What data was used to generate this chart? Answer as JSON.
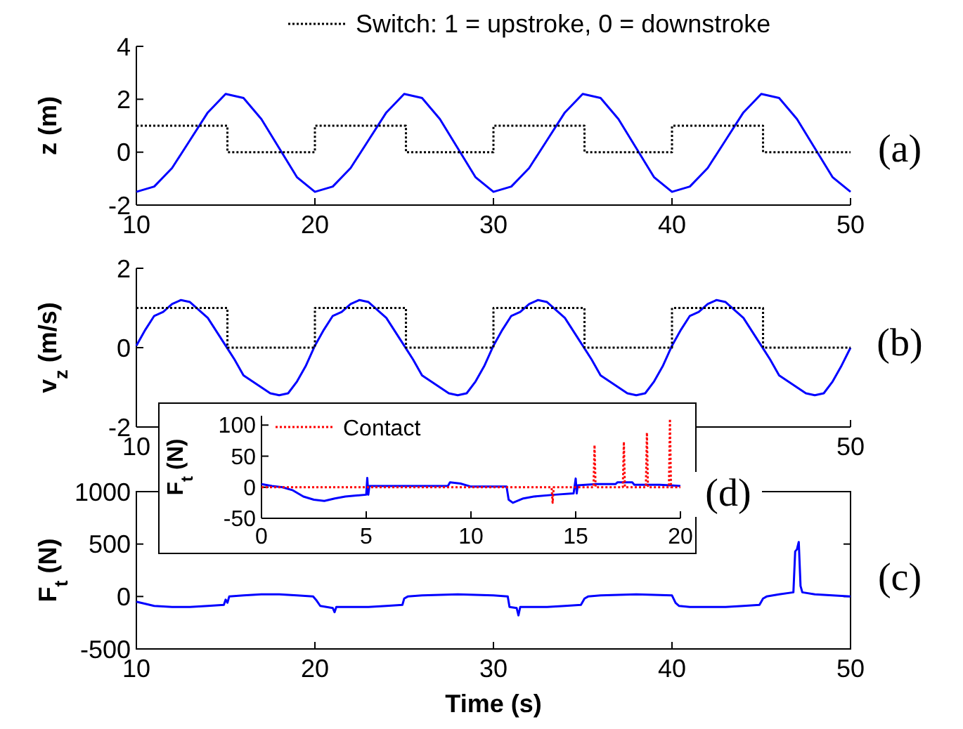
{
  "chart_data": [
    {
      "type": "line",
      "ylabel": "z (m)",
      "xlim": [
        10,
        50
      ],
      "ylim": [
        -2,
        4
      ],
      "xticks": [
        10,
        20,
        30,
        40,
        50
      ],
      "yticks": [
        -2,
        0,
        2,
        4
      ],
      "legend": "top",
      "annotations": [
        "(a)"
      ],
      "series": [
        {
          "color": "#0000ff",
          "x": [
            10,
            11,
            12,
            13,
            14,
            15,
            16,
            17,
            18,
            19,
            20,
            21,
            22,
            23,
            24,
            25,
            26,
            27,
            28,
            29,
            30,
            31,
            32,
            33,
            34,
            35,
            36,
            37,
            38,
            39,
            40,
            41,
            42,
            43,
            44,
            45,
            46,
            47,
            48,
            49,
            50
          ],
          "values": [
            -1.5,
            -1.3,
            -0.6,
            0.45,
            1.5,
            2.2,
            2.05,
            1.25,
            0.15,
            -0.95,
            -1.5,
            -1.3,
            -0.6,
            0.45,
            1.5,
            2.2,
            2.05,
            1.25,
            0.15,
            -0.95,
            -1.5,
            -1.3,
            -0.6,
            0.45,
            1.5,
            2.2,
            2.05,
            1.25,
            0.15,
            -0.95,
            -1.5,
            -1.3,
            -0.6,
            0.45,
            1.5,
            2.2,
            2.05,
            1.25,
            0.15,
            -0.95,
            -1.5
          ]
        },
        {
          "type": "step",
          "name": "Switch: 1 = upstroke, 0 = downstroke",
          "color": "#000000",
          "line_style": "dotted",
          "x": [
            10,
            15.1,
            20,
            25.1,
            30,
            35.1,
            40,
            45.1,
            50
          ],
          "values": [
            1,
            0,
            1,
            0,
            1,
            0,
            1,
            0,
            0
          ]
        }
      ]
    },
    {
      "type": "line",
      "ylabel": "v$_{z}$ (m/s)",
      "xlim": [
        10,
        50
      ],
      "ylim": [
        -2,
        2
      ],
      "xticks": [
        10,
        50
      ],
      "yticks": [
        -2,
        0,
        2
      ],
      "annotations": [
        "(b)"
      ],
      "series": [
        {
          "color": "#0000ff",
          "x": [
            10,
            10.5,
            11,
            11.5,
            12,
            12.5,
            13,
            14,
            15,
            15.5,
            16,
            16.5,
            17,
            17.5,
            18,
            18.5,
            19,
            19.5,
            20,
            20.5,
            21,
            21.5,
            22,
            22.5,
            23,
            24,
            25,
            25.5,
            26,
            26.5,
            27,
            27.5,
            28,
            28.5,
            29,
            29.5,
            30,
            30.5,
            31,
            31.5,
            32,
            32.5,
            33,
            34,
            35,
            35.5,
            36,
            36.5,
            37,
            37.5,
            38,
            38.5,
            39,
            39.5,
            40,
            40.5,
            41,
            41.5,
            42,
            42.5,
            43,
            44,
            45,
            45.5,
            46,
            46.5,
            47,
            47.5,
            48,
            48.5,
            49,
            49.5,
            50
          ],
          "values": [
            0.05,
            0.45,
            0.8,
            0.9,
            1.1,
            1.2,
            1.15,
            0.75,
            0.05,
            -0.3,
            -0.7,
            -0.85,
            -1.0,
            -1.15,
            -1.2,
            -1.15,
            -0.85,
            -0.45,
            0.05,
            0.45,
            0.8,
            0.9,
            1.1,
            1.2,
            1.15,
            0.75,
            0.05,
            -0.3,
            -0.7,
            -0.85,
            -1.0,
            -1.15,
            -1.2,
            -1.15,
            -0.85,
            -0.45,
            0.05,
            0.45,
            0.8,
            0.9,
            1.1,
            1.2,
            1.15,
            0.75,
            0.05,
            -0.3,
            -0.7,
            -0.85,
            -1.0,
            -1.15,
            -1.2,
            -1.15,
            -0.85,
            -0.45,
            0.05,
            0.45,
            0.8,
            0.9,
            1.1,
            1.2,
            1.15,
            0.75,
            0.05,
            -0.3,
            -0.7,
            -0.85,
            -1.0,
            -1.15,
            -1.2,
            -1.15,
            -0.85,
            -0.45,
            0.0
          ]
        },
        {
          "type": "step",
          "color": "#000000",
          "line_style": "dotted",
          "x": [
            10,
            15.1,
            20,
            25.1,
            30,
            35.1,
            40,
            45.1,
            50
          ],
          "values": [
            1,
            0,
            1,
            0,
            1,
            0,
            1,
            0,
            0
          ]
        }
      ]
    },
    {
      "type": "line",
      "ylabel": "F$_{t}$ (N)",
      "xlabel": "Time (s)",
      "xlim": [
        10,
        50
      ],
      "ylim": [
        -500,
        1000
      ],
      "xticks": [
        10,
        20,
        30,
        40,
        50
      ],
      "yticks": [
        -500,
        0,
        500,
        1000
      ],
      "annotations": [
        "(c)"
      ],
      "series": [
        {
          "color": "#0000ff",
          "x": [
            10,
            10.5,
            11,
            12,
            13,
            14,
            14.9,
            15,
            15.1,
            15.2,
            16,
            17,
            18,
            19,
            19.9,
            20.1,
            20.3,
            21,
            21.1,
            21.2,
            22,
            23,
            24,
            24.9,
            25,
            25.2,
            26,
            28,
            30,
            30.8,
            30.9,
            31.3,
            31.4,
            31.5,
            32,
            33,
            34,
            34.9,
            35.1,
            35.3,
            36,
            38,
            40,
            40.2,
            40.4,
            41,
            43,
            44,
            44.9,
            45.1,
            45.3,
            46,
            46.8,
            46.9,
            47,
            47.1,
            47.2,
            47.3,
            48,
            50
          ],
          "values": [
            -50,
            -70,
            -90,
            -100,
            -100,
            -90,
            -80,
            -30,
            -60,
            0,
            10,
            20,
            20,
            10,
            0,
            -40,
            -90,
            -110,
            -150,
            -100,
            -100,
            -100,
            -90,
            -80,
            -20,
            0,
            10,
            20,
            10,
            0,
            -100,
            -110,
            -180,
            -100,
            -100,
            -100,
            -90,
            -80,
            -20,
            0,
            10,
            20,
            10,
            -60,
            -90,
            -100,
            -100,
            -90,
            -80,
            -20,
            0,
            20,
            40,
            430,
            450,
            520,
            100,
            40,
            20,
            0
          ]
        }
      ]
    },
    {
      "type": "line",
      "ylabel": "F$_{t}$ (N)",
      "xlim": [
        0,
        20
      ],
      "ylim": [
        -50,
        115
      ],
      "xticks": [
        0,
        5,
        10,
        15,
        20
      ],
      "yticks": [
        -50,
        0,
        50,
        100
      ],
      "legend": "top left",
      "annotations": [
        "(d)"
      ],
      "series": [
        {
          "color": "#0000ff",
          "x": [
            0,
            0.5,
            1,
            1.5,
            2,
            2.5,
            3,
            3.5,
            4,
            5,
            5.05,
            5.1,
            5.15,
            7,
            8.9,
            9,
            9.5,
            10,
            11.7,
            11.8,
            12,
            12.5,
            13,
            14,
            14.9,
            15,
            15.05,
            15.1,
            16,
            16.9,
            17,
            17.7,
            17.8,
            19,
            19.5,
            20
          ],
          "values": [
            5,
            2,
            0,
            -5,
            -15,
            -20,
            -22,
            -18,
            -15,
            -12,
            15,
            -12,
            2,
            2,
            2,
            8,
            6,
            1,
            1,
            -20,
            -25,
            -18,
            -15,
            -12,
            -10,
            14,
            -10,
            3,
            5,
            5,
            8,
            8,
            4,
            4,
            3,
            2
          ]
        },
        {
          "name": "Contact",
          "color": "#ff0000",
          "line_style": "dotted",
          "x": [
            0,
            13.85,
            13.9,
            13.95,
            15.85,
            15.9,
            15.95,
            17.25,
            17.3,
            17.35,
            18.35,
            18.4,
            18.45,
            19.45,
            19.5,
            19.55,
            20
          ],
          "values": [
            0,
            0,
            -25,
            0,
            0,
            68,
            0,
            0,
            73,
            0,
            0,
            88,
            0,
            0,
            110,
            0,
            0
          ]
        }
      ]
    }
  ]
}
